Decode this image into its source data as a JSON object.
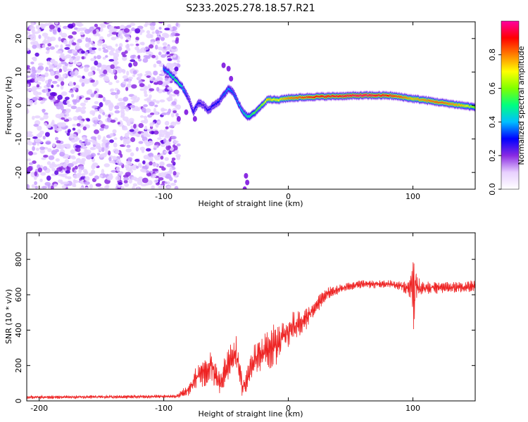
{
  "title": "S233.2025.278.18.57.R21",
  "chart_data": [
    {
      "type": "heatmap",
      "xlabel": "Height of straight line (km)",
      "ylabel": "Frequency (Hz)",
      "xlim": [
        -210,
        150
      ],
      "ylim": [
        -25,
        25
      ],
      "xticks": [
        -200,
        -100,
        0,
        100
      ],
      "xtick_labels": [
        "-200",
        "-100",
        "0",
        "100"
      ],
      "yticks": [
        -20,
        -10,
        0,
        10,
        20
      ],
      "ytick_labels": [
        "-20",
        "-10",
        "0",
        "10",
        "20"
      ],
      "ridge": {
        "x": [
          -100,
          -95,
          -90,
          -85,
          -80,
          -76,
          -72,
          -68,
          -64,
          -60,
          -56,
          -52,
          -48,
          -44,
          -40,
          -36,
          -32,
          -28,
          -24,
          -20,
          -16,
          -12,
          -8,
          -4,
          0,
          10,
          20,
          40,
          60,
          80,
          90,
          100,
          110,
          120,
          130,
          140,
          150
        ],
        "y": [
          11,
          9.5,
          7.5,
          5.5,
          2,
          -2,
          1,
          0,
          -1.5,
          0,
          1,
          3,
          5,
          4,
          0.5,
          -2,
          -3.5,
          -2.5,
          -1,
          0.5,
          2,
          1.8,
          1.6,
          2,
          2.2,
          2.4,
          2.6,
          2.8,
          3,
          3,
          2.6,
          2,
          1.6,
          1,
          0.5,
          0,
          -0.5
        ],
        "amplitude": [
          0.35,
          0.45,
          0.55,
          0.45,
          0.25,
          0.3,
          0.3,
          0.25,
          0.3,
          0.3,
          0.3,
          0.35,
          0.4,
          0.35,
          0.4,
          0.45,
          0.5,
          0.55,
          0.6,
          0.65,
          0.75,
          0.7,
          0.7,
          0.75,
          0.8,
          0.85,
          0.9,
          0.92,
          0.97,
          0.9,
          0.85,
          0.75,
          0.8,
          0.85,
          0.8,
          0.75,
          0.6
        ]
      },
      "noise_region_x": [
        -210,
        -100
      ],
      "colorbar": {
        "label": "Normalized spectral amplitude",
        "range": [
          0,
          1
        ],
        "ticks": [
          0.0,
          0.2,
          0.4,
          0.6,
          0.8
        ],
        "tick_labels": [
          "0.0",
          "0.2",
          "0.4",
          "0.6",
          "0.8"
        ],
        "colors": [
          "#ffffff",
          "#e8d0ff",
          "#8a2be2",
          "#0000ff",
          "#00bfff",
          "#00ff80",
          "#80ff00",
          "#ffff00",
          "#ff8000",
          "#ff0000",
          "#ff00a0"
        ]
      }
    },
    {
      "type": "line",
      "xlabel": "Height of straight line (km)",
      "ylabel": "SNR (10 * v/v)",
      "xlim": [
        -210,
        150
      ],
      "ylim": [
        0,
        950
      ],
      "xticks": [
        -200,
        -100,
        0,
        100
      ],
      "xtick_labels": [
        "-200",
        "-100",
        "0",
        "100"
      ],
      "yticks": [
        0,
        200,
        400,
        600,
        800
      ],
      "ytick_labels": [
        "0",
        "200",
        "400",
        "600",
        "800"
      ],
      "color": "#ee2222",
      "envelope": {
        "x": [
          -210,
          -90,
          -80,
          -75,
          -70,
          -65,
          -62,
          -58,
          -55,
          -50,
          -46,
          -44,
          -42,
          -40,
          -37,
          -34,
          -32,
          -28,
          -24,
          -20,
          -15,
          -10,
          -5,
          0,
          5,
          10,
          15,
          20,
          25,
          30,
          40,
          50,
          60,
          70,
          80,
          90,
          95,
          98,
          100,
          101,
          102,
          104,
          110,
          120,
          130,
          140,
          150
        ],
        "mean": [
          20,
          25,
          60,
          120,
          170,
          150,
          200,
          130,
          100,
          180,
          260,
          240,
          270,
          200,
          80,
          100,
          150,
          230,
          260,
          280,
          300,
          320,
          360,
          390,
          420,
          440,
          470,
          520,
          560,
          600,
          630,
          650,
          660,
          660,
          660,
          650,
          640,
          640,
          660,
          620,
          660,
          640,
          640,
          640,
          640,
          640,
          650
        ],
        "amplitude": [
          10,
          10,
          40,
          60,
          90,
          80,
          90,
          80,
          70,
          90,
          110,
          100,
          110,
          110,
          60,
          60,
          70,
          80,
          100,
          110,
          120,
          120,
          110,
          100,
          90,
          80,
          70,
          60,
          50,
          40,
          30,
          25,
          25,
          25,
          25,
          30,
          40,
          60,
          240,
          280,
          120,
          60,
          40,
          35,
          35,
          35,
          35
        ]
      }
    }
  ]
}
